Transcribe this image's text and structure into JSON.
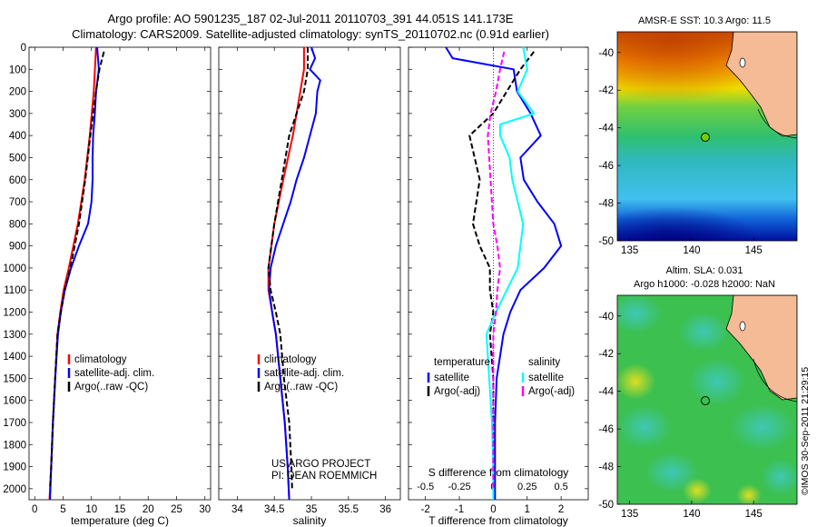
{
  "header": {
    "line1": "Argo profile: AO 5901235_187 02-Jul-2011 20110703_391 44.051S 141.173E",
    "line2": "Climatology: CARS2009. Satellite-adjusted climatology: synTS_20110702.nc (0.91d earlier)"
  },
  "colors": {
    "climatology": "#ff0000",
    "satellite": "#0000ff",
    "argo": "#000000",
    "sal_satellite": "#00ffff",
    "sal_argo": "#ff00ff"
  },
  "chart_data": [
    {
      "type": "line",
      "panel": "temperature",
      "xlabel": "temperature (deg C)",
      "ylabel": "",
      "xlim": [
        -1,
        31
      ],
      "ylim": [
        2050,
        0
      ],
      "xticks": [
        "0",
        "5",
        "10",
        "15",
        "20",
        "25",
        "30"
      ],
      "yticks": [
        "0",
        "100",
        "200",
        "300",
        "400",
        "500",
        "600",
        "700",
        "800",
        "900",
        "1000",
        "1100",
        "1200",
        "1300",
        "1400",
        "1500",
        "1600",
        "1700",
        "1800",
        "1900",
        "2000"
      ],
      "legend": [
        "climatology",
        "satellite-adj. clim.",
        "Argo(..raw -QC)"
      ],
      "series": [
        {
          "name": "climatology",
          "y": [
            0,
            200,
            400,
            600,
            800,
            1000,
            1100,
            1200,
            1300,
            1500,
            1700,
            1900,
            2050
          ],
          "values": [
            10.8,
            10.4,
            9.7,
            8.8,
            7.6,
            6.0,
            5.1,
            4.5,
            4.0,
            3.6,
            3.2,
            2.9,
            2.6
          ]
        },
        {
          "name": "satellite-adj. clim.",
          "y": [
            0,
            100,
            200,
            300,
            400,
            500,
            600,
            700,
            800,
            900,
            1000,
            1100,
            1200,
            1300,
            1500,
            1700,
            1900,
            2050
          ],
          "values": [
            11.0,
            11.3,
            10.8,
            10.6,
            10.3,
            10.2,
            10.2,
            10.0,
            9.4,
            7.8,
            6.4,
            5.3,
            4.6,
            4.1,
            3.6,
            3.2,
            2.9,
            2.7
          ]
        },
        {
          "name": "Argo(..raw -QC)",
          "y": [
            20,
            100,
            200,
            300,
            400,
            600,
            800,
            1000,
            1100,
            1200,
            1300,
            1500,
            1700,
            1900,
            2000
          ],
          "values": [
            12.2,
            11.4,
            10.8,
            10.3,
            9.8,
            8.9,
            7.8,
            6.3,
            5.3,
            4.6,
            4.0,
            3.6,
            3.2,
            2.9,
            2.7
          ]
        }
      ]
    },
    {
      "type": "line",
      "panel": "salinity",
      "xlabel": "salinity",
      "xlim": [
        33.75,
        36.2
      ],
      "ylim": [
        2050,
        0
      ],
      "xticks": [
        "34",
        "34.5",
        "35",
        "35.5",
        "36"
      ],
      "legend": [
        "climatology",
        "satellite-adj. clim.",
        "Argo(..raw -QC)"
      ],
      "annotation": [
        "US ARGO PROJECT",
        "PI: DEAN ROEMMICH"
      ],
      "series": [
        {
          "name": "climatology",
          "y": [
            0,
            100,
            200,
            300,
            400,
            600,
            800,
            1000,
            1100,
            1200,
            1300,
            1500,
            1700,
            1900,
            2050
          ],
          "values": [
            34.9,
            34.9,
            34.85,
            34.8,
            34.75,
            34.62,
            34.5,
            34.42,
            34.42,
            34.47,
            34.52,
            34.58,
            34.64,
            34.68,
            34.7
          ]
        },
        {
          "name": "satellite-adj. clim.",
          "y": [
            0,
            50,
            100,
            150,
            200,
            300,
            400,
            500,
            600,
            700,
            800,
            900,
            1000,
            1100,
            1200,
            1300,
            1500,
            1700,
            1900,
            2050
          ],
          "values": [
            35.0,
            35.05,
            34.98,
            35.12,
            35.08,
            35.06,
            34.98,
            34.9,
            34.8,
            34.72,
            34.62,
            34.52,
            34.45,
            34.43,
            34.47,
            34.52,
            34.58,
            34.64,
            34.68,
            34.7
          ]
        },
        {
          "name": "Argo(..raw -QC)",
          "y": [
            0,
            100,
            200,
            300,
            400,
            600,
            800,
            1000,
            1100,
            1200,
            1300,
            1500,
            1700,
            1900,
            2000
          ],
          "values": [
            34.95,
            34.95,
            34.9,
            34.8,
            34.7,
            34.6,
            34.5,
            34.42,
            34.45,
            34.52,
            34.58,
            34.63,
            34.7,
            34.73,
            34.74
          ]
        }
      ]
    },
    {
      "type": "line",
      "panel": "difference",
      "xlabel": "T difference from climatology",
      "xlabel_top": "S difference from climatology",
      "xlim": [
        -2.5,
        2.8
      ],
      "ylim": [
        2050,
        0
      ],
      "xticks_bottom": [
        "-2",
        "-1",
        "0",
        "1",
        "2"
      ],
      "xticks_top": [
        "-0.5",
        "-0.25",
        "0",
        "0.25",
        "0.5"
      ],
      "legend_temperature": {
        "title": "temperature",
        "items": [
          "satellite",
          "Argo(-adj)"
        ]
      },
      "legend_salinity": {
        "title": "salinity",
        "items": [
          "satellite",
          "Argo(-adj)"
        ]
      },
      "series": [
        {
          "name": "temperature satellite",
          "y": [
            0,
            50,
            100,
            200,
            300,
            400,
            500,
            600,
            700,
            800,
            900,
            1000,
            1100,
            1200,
            1300,
            1500,
            1700,
            1900,
            2050
          ],
          "values": [
            -1.4,
            -1.2,
            0.6,
            0.7,
            1.1,
            1.4,
            0.8,
            0.9,
            1.3,
            1.8,
            2.0,
            1.5,
            0.8,
            0.5,
            0.3,
            0.1,
            0.05,
            0.05,
            0.05
          ]
        },
        {
          "name": "temperature Argo(-adj)",
          "y": [
            20,
            100,
            200,
            300,
            400,
            600,
            800,
            900,
            1000,
            1100,
            1200,
            1300,
            1500,
            1700,
            1900,
            2000
          ],
          "values": [
            1.2,
            0.8,
            0.4,
            0.0,
            -0.7,
            -0.4,
            -0.6,
            -0.4,
            -0.1,
            -0.1,
            0.0,
            -0.1,
            0.0,
            0.0,
            0.0,
            0.0
          ]
        },
        {
          "name": "salinity satellite",
          "y": [
            0,
            100,
            200,
            300,
            350,
            400,
            500,
            600,
            700,
            800,
            900,
            1000,
            1100,
            1200,
            1300,
            1500,
            1700,
            1900,
            2050
          ],
          "values": [
            0.22,
            0.25,
            0.18,
            0.3,
            0.05,
            0.05,
            0.12,
            0.14,
            0.18,
            0.22,
            0.2,
            0.18,
            0.1,
            0.02,
            -0.05,
            -0.03,
            -0.01,
            0.0,
            0.0
          ]
        },
        {
          "name": "salinity Argo(-adj)",
          "y": [
            20,
            100,
            200,
            300,
            400,
            600,
            800,
            900,
            1000,
            1100,
            1200,
            1300,
            1500,
            1700,
            1900,
            2000
          ],
          "values": [
            0.08,
            0.05,
            0.02,
            -0.02,
            -0.04,
            -0.02,
            0.0,
            0.03,
            0.05,
            0.03,
            0.02,
            0.0,
            0.0,
            0.0,
            0.0,
            0.0
          ]
        }
      ]
    }
  ],
  "maps": {
    "sst": {
      "title": "AMSR-E SST: 10.3 Argo: 11.5",
      "xticks": [
        "135",
        "140",
        "145"
      ],
      "yticks": [
        "-40",
        "-42",
        "-44",
        "-46",
        "-48",
        "-50"
      ]
    },
    "sla": {
      "title_line1": "Altim. SLA: 0.031",
      "title_line2": "Argo h1000: -0.028 h2000: NaN",
      "xticks": [
        "135",
        "140",
        "145"
      ],
      "yticks": [
        "-40",
        "-42",
        "-44",
        "-46",
        "-48",
        "-50"
      ],
      "credit": "©IMOS 30-Sep-2011 21:29:15"
    }
  }
}
